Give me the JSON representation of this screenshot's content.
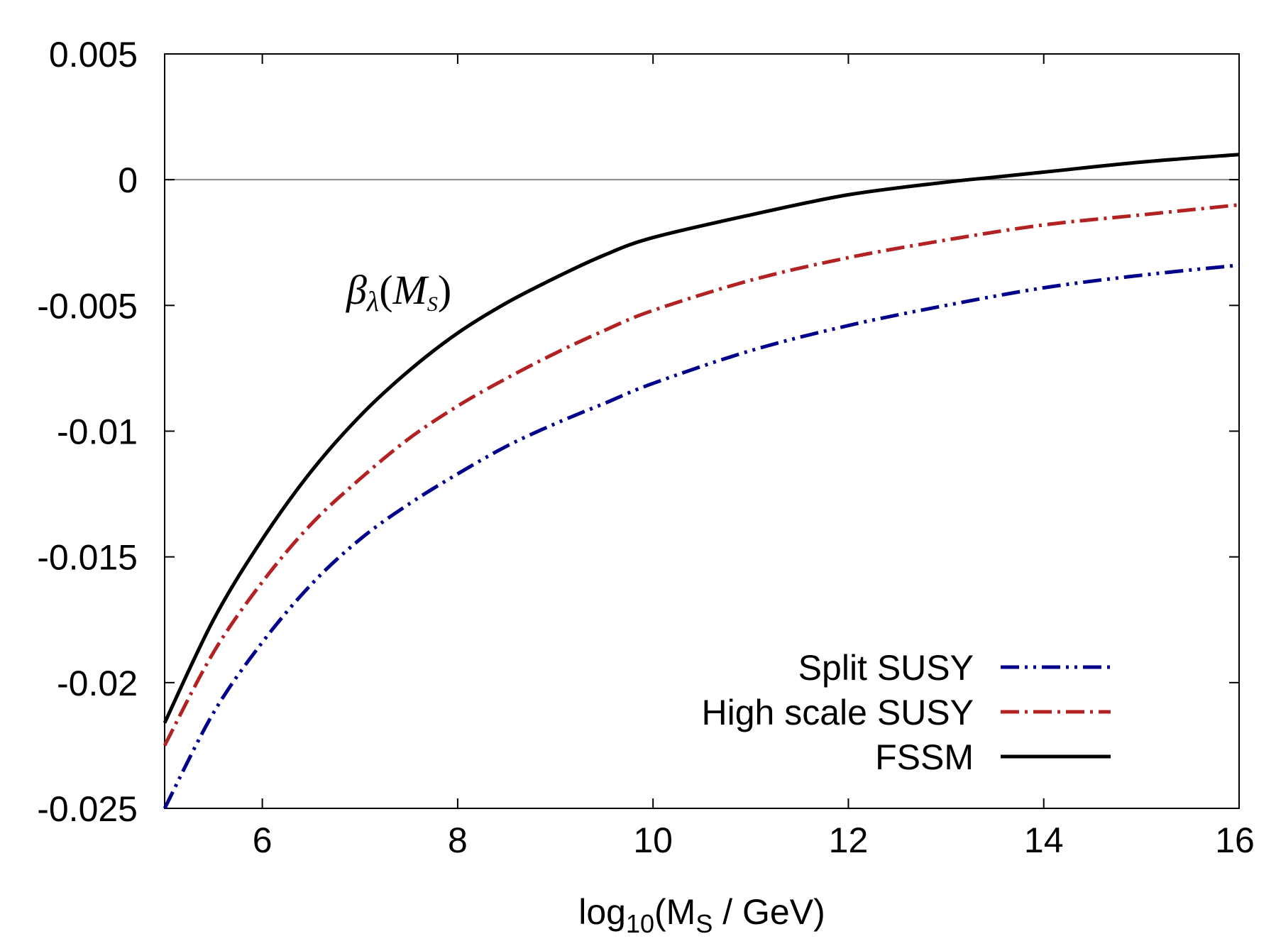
{
  "chart_data": {
    "type": "line",
    "title": "",
    "xlabel": {
      "prefix": "log",
      "sub": "10",
      "main": "(M",
      "sub2": "S",
      "suffix": " / GeV)"
    },
    "ylabel": "",
    "xlim": [
      5,
      16
    ],
    "ylim": [
      -0.025,
      0.005
    ],
    "grid": false,
    "legend_position": "bottom-right",
    "x_ticks": [
      {
        "value": 6,
        "label": "6"
      },
      {
        "value": 8,
        "label": "8"
      },
      {
        "value": 10,
        "label": "10"
      },
      {
        "value": 12,
        "label": "12"
      },
      {
        "value": 14,
        "label": "14"
      },
      {
        "value": 16,
        "label": "16"
      }
    ],
    "y_ticks": [
      {
        "value": 0.005,
        "label": "0.005"
      },
      {
        "value": 0,
        "label": "0"
      },
      {
        "value": -0.005,
        "label": "-0.005"
      },
      {
        "value": -0.01,
        "label": "-0.01"
      },
      {
        "value": -0.015,
        "label": "-0.015"
      },
      {
        "value": -0.02,
        "label": "-0.02"
      },
      {
        "value": -0.025,
        "label": "-0.025"
      }
    ],
    "annotation": {
      "beta": "β",
      "lambda": "λ",
      "open": "(",
      "m": "M",
      "s": "S",
      "close": ")"
    },
    "series": [
      {
        "name": "Split SUSY",
        "color": "#00008b",
        "style": "dash-dot-dot",
        "x": [
          5,
          5.5,
          6,
          6.5,
          7,
          7.5,
          8,
          8.5,
          9,
          9.5,
          10,
          11,
          12,
          13,
          14,
          15,
          16
        ],
        "y": [
          -0.025,
          -0.0212,
          -0.0184,
          -0.0161,
          -0.0143,
          -0.0129,
          -0.0117,
          -0.0106,
          -0.0097,
          -0.0089,
          -0.0081,
          -0.0068,
          -0.0058,
          -0.005,
          -0.0043,
          -0.0038,
          -0.0034
        ]
      },
      {
        "name": "High scale SUSY",
        "color": "#b22222",
        "style": "dash-dot",
        "x": [
          5,
          5.5,
          6,
          6.5,
          7,
          7.5,
          8,
          8.5,
          9,
          9.5,
          10,
          11,
          12,
          13,
          14,
          15,
          16
        ],
        "y": [
          -0.0225,
          -0.0188,
          -0.016,
          -0.0137,
          -0.0119,
          -0.0103,
          -0.009,
          -0.0079,
          -0.0069,
          -0.006,
          -0.0052,
          -0.004,
          -0.0031,
          -0.0024,
          -0.0018,
          -0.0014,
          -0.001
        ]
      },
      {
        "name": "FSSM",
        "color": "#000000",
        "style": "solid",
        "x": [
          5,
          5.5,
          6,
          6.5,
          7,
          7.5,
          8,
          8.5,
          9,
          9.5,
          10,
          11,
          12,
          13,
          13.5,
          14,
          15,
          16
        ],
        "y": [
          -0.0216,
          -0.0175,
          -0.0143,
          -0.0116,
          -0.0094,
          -0.0076,
          -0.0061,
          -0.0049,
          -0.0039,
          -0.003,
          -0.0023,
          -0.0014,
          -0.0006,
          -0.0001,
          0.0001,
          0.0003,
          0.0007,
          0.001
        ]
      }
    ]
  }
}
